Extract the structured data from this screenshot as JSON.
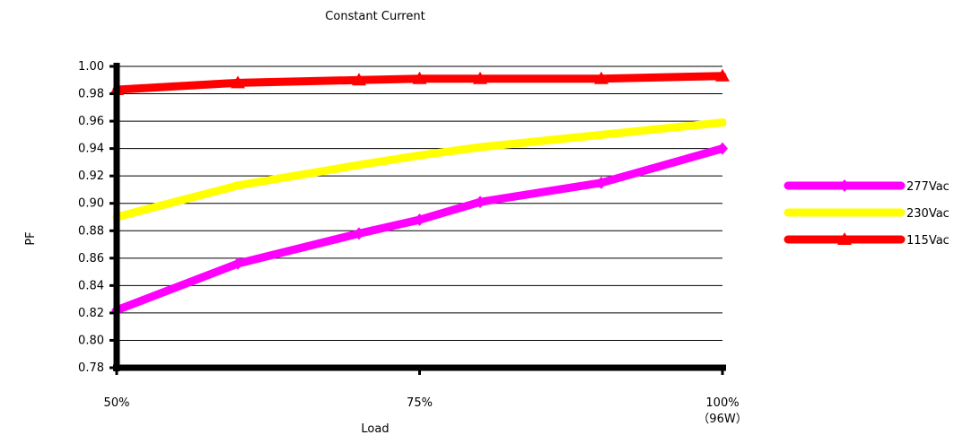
{
  "chart_data": {
    "type": "line",
    "title": "Constant Current",
    "xlabel": "Load",
    "ylabel": "PF",
    "x_tick_labels": [
      {
        "value": 50,
        "label": "50%",
        "sublabel": ""
      },
      {
        "value": 75,
        "label": "75%",
        "sublabel": ""
      },
      {
        "value": 100,
        "label": "100%",
        "sublabel": "（96W）"
      }
    ],
    "xlim": [
      50,
      100
    ],
    "ylim": [
      0.78,
      1.0
    ],
    "y_ticks": [
      "0.78",
      "0.80",
      "0.82",
      "0.84",
      "0.86",
      "0.88",
      "0.90",
      "0.92",
      "0.94",
      "0.96",
      "0.98",
      "1.00"
    ],
    "grid": true,
    "legend_position": "right",
    "series": [
      {
        "name": "277Vac",
        "color": "#ff00ff",
        "marker": "diamond",
        "x": [
          50,
          60,
          70,
          75,
          80,
          90,
          100
        ],
        "y": [
          0.822,
          0.856,
          0.878,
          0.888,
          0.901,
          0.915,
          0.94
        ]
      },
      {
        "name": "230Vac",
        "color": "#ffff00",
        "marker": "square",
        "x": [
          50,
          60,
          70,
          75,
          80,
          90,
          100
        ],
        "y": [
          0.89,
          0.913,
          0.928,
          0.935,
          0.941,
          0.95,
          0.959
        ]
      },
      {
        "name": "115Vac",
        "color": "#ff0000",
        "marker": "triangle",
        "x": [
          50,
          60,
          70,
          75,
          80,
          90,
          100
        ],
        "y": [
          0.983,
          0.988,
          0.99,
          0.991,
          0.991,
          0.991,
          0.993
        ]
      }
    ]
  }
}
